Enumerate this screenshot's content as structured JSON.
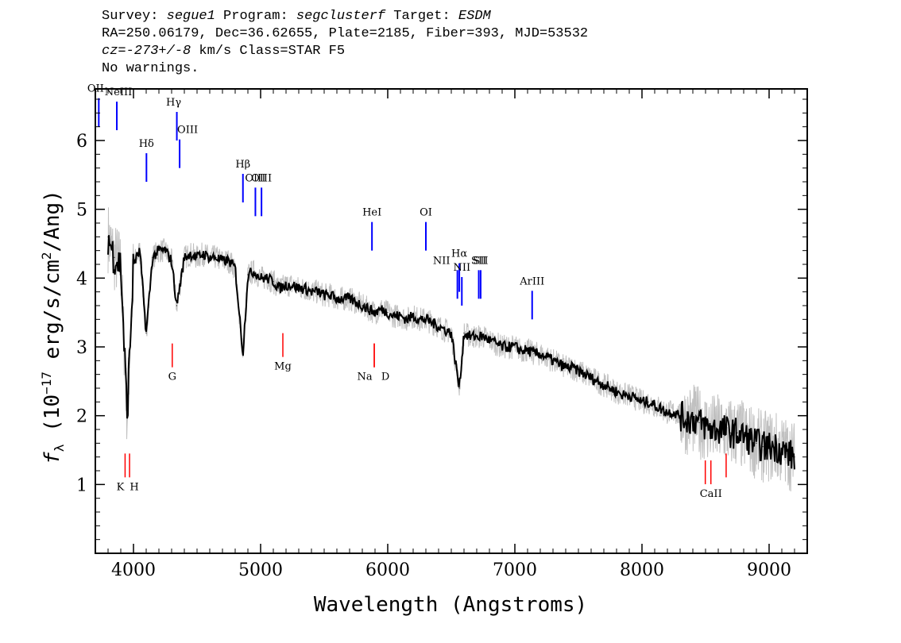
{
  "header": {
    "survey_label": "Survey:",
    "survey": "segue1",
    "program_label": "Program:",
    "program": "segclusterf",
    "target_label": "Target:",
    "target": "ESDM",
    "line2": "RA=250.06179, Dec=36.62655, Plate=2185, Fiber=393, MJD=53532",
    "cz": "cz=-273+/-8",
    "cz_rest": " km/s Class=STAR F5",
    "line4": "No warnings."
  },
  "chart_data": {
    "type": "line",
    "xlabel": "Wavelength (Angstroms)",
    "ylabel_f": "f",
    "ylabel_sub": "λ",
    "ylabel_a": " (10",
    "ylabel_exp": "−17",
    "ylabel_b": " erg/s/cm",
    "ylabel_exp2": "2",
    "ylabel_c": "/Ang)",
    "xlim": [
      3700,
      9300
    ],
    "ylim": [
      0,
      6.75
    ],
    "xticks": [
      4000,
      5000,
      6000,
      7000,
      8000,
      9000
    ],
    "yticks": [
      1,
      2,
      3,
      4,
      5,
      6
    ],
    "colors": {
      "flux": "#000000",
      "error": "#c0c0c0",
      "emission": "#0000ff",
      "absorption": "#ff0000"
    },
    "series": [
      {
        "kind": "flux",
        "x": [
          3800,
          3850,
          3900,
          3950,
          4000,
          4050,
          4100,
          4150,
          4200,
          4250,
          4300,
          4340,
          4400,
          4450,
          4500,
          4550,
          4600,
          4650,
          4700,
          4750,
          4800,
          4861,
          4900,
          4950,
          5000,
          5050,
          5100,
          5150,
          5200,
          5250,
          5300,
          5350,
          5400,
          5450,
          5500,
          5550,
          5600,
          5650,
          5700,
          5750,
          5800,
          5850,
          5900,
          5950,
          6000,
          6050,
          6100,
          6150,
          6200,
          6250,
          6300,
          6350,
          6400,
          6450,
          6500,
          6563,
          6600,
          6650,
          6700,
          6750,
          6800,
          6850,
          6900,
          6950,
          7000,
          7050,
          7100,
          7150,
          7200,
          7250,
          7300,
          7350,
          7400,
          7450,
          7500,
          7550,
          7600,
          7650,
          7700,
          7750,
          7800,
          7850,
          7900,
          7950,
          8000,
          8050,
          8100,
          8150,
          8200,
          8250,
          8300,
          8350,
          8400,
          8450,
          8500,
          8550,
          8600,
          8650,
          8700,
          8750,
          8800,
          8850,
          8900,
          8950,
          9000,
          9050,
          9100,
          9150,
          9200
        ],
        "y": [
          4.6,
          4.3,
          4.2,
          2.0,
          4.2,
          4.4,
          3.2,
          4.3,
          4.4,
          4.4,
          4.25,
          3.6,
          4.3,
          4.35,
          4.3,
          4.35,
          4.3,
          4.3,
          4.25,
          4.25,
          4.15,
          2.9,
          4.05,
          4.1,
          4.0,
          4.0,
          3.95,
          3.85,
          3.9,
          3.9,
          3.85,
          3.85,
          3.8,
          3.8,
          3.75,
          3.75,
          3.7,
          3.7,
          3.7,
          3.65,
          3.6,
          3.55,
          3.5,
          3.55,
          3.5,
          3.45,
          3.45,
          3.4,
          3.45,
          3.4,
          3.4,
          3.35,
          3.3,
          3.25,
          3.2,
          2.4,
          3.2,
          3.15,
          3.15,
          3.15,
          3.1,
          3.05,
          3.0,
          3.0,
          3.0,
          2.95,
          2.95,
          2.9,
          2.9,
          2.85,
          2.8,
          2.75,
          2.7,
          2.7,
          2.65,
          2.6,
          2.55,
          2.5,
          2.45,
          2.4,
          2.35,
          2.3,
          2.3,
          2.25,
          2.2,
          2.2,
          2.15,
          2.1,
          2.05,
          2.05,
          2.0,
          1.95,
          1.95,
          1.9,
          1.85,
          1.8,
          1.8,
          1.8,
          1.75,
          1.75,
          1.7,
          1.65,
          1.6,
          1.55,
          1.55,
          1.55,
          1.5,
          1.45,
          1.4
        ]
      }
    ],
    "emission_lines": [
      {
        "label": "OII",
        "wave": 3727
      },
      {
        "label": "NeIII",
        "wave": 3869
      },
      {
        "label": "Hδ",
        "wave": 4102
      },
      {
        "label": "Hγ",
        "wave": 4341
      },
      {
        "label": "OIII",
        "wave": 4363
      },
      {
        "label": "Hβ",
        "wave": 4861
      },
      {
        "label": "OIII",
        "wave": 4959
      },
      {
        "label": "OIII",
        "wave": 5007
      },
      {
        "label": "HeI",
        "wave": 5876
      },
      {
        "label": "OI",
        "wave": 6300
      },
      {
        "label": "NII",
        "wave": 6548
      },
      {
        "label": "Hα",
        "wave": 6563
      },
      {
        "label": "NII",
        "wave": 6583
      },
      {
        "label": "SII",
        "wave": 6716
      },
      {
        "label": "SII",
        "wave": 6731
      },
      {
        "label": "ArIII",
        "wave": 7136
      }
    ],
    "absorption_lines": [
      {
        "label": "K",
        "wave": 3934
      },
      {
        "label": "H",
        "wave": 3969
      },
      {
        "label": "G",
        "wave": 4305
      },
      {
        "label": "Mg",
        "wave": 5175
      },
      {
        "label": "Na",
        "wave": 5894
      },
      {
        "label": "D",
        "wave": 5894
      },
      {
        "label": "CaII",
        "wave": 8498
      },
      {
        "label": "CaII",
        "wave": 8542
      },
      {
        "label": "CaII",
        "wave": 8662
      }
    ],
    "grid": false
  }
}
